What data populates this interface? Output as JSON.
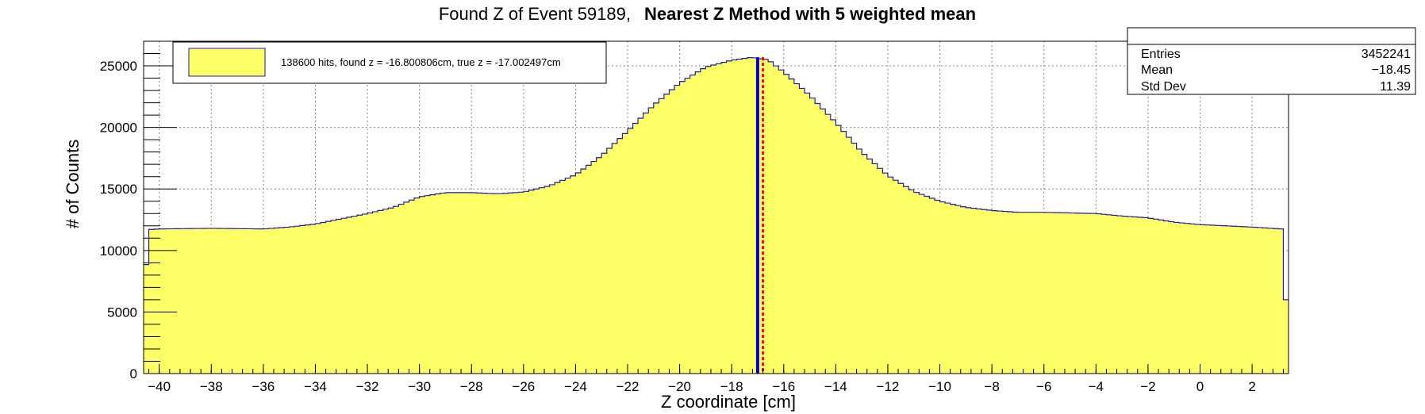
{
  "chart_data": {
    "type": "histogram",
    "title_prefix": "Found Z of Event 59189,",
    "title_bold": "Nearest Z Method with 5 weighted mean",
    "xlabel": "Z coordinate [cm]",
    "ylabel": "# of Counts",
    "xlim": [
      -40.6,
      3.4
    ],
    "ylim": [
      0,
      27000
    ],
    "x_ticks": [
      -40,
      -38,
      -36,
      -34,
      -32,
      -30,
      -28,
      -26,
      -24,
      -22,
      -20,
      -18,
      -16,
      -14,
      -12,
      -10,
      -8,
      -6,
      -4,
      -2,
      0,
      2
    ],
    "y_ticks": [
      0,
      5000,
      10000,
      15000,
      20000,
      25000
    ],
    "grid": true,
    "fill_color": "#ffff66",
    "line_color": "#1d1da8",
    "profile": [
      [
        -40.6,
        6000
      ],
      [
        -40.4,
        11700
      ],
      [
        -40,
        11750
      ],
      [
        -38,
        11800
      ],
      [
        -36,
        11750
      ],
      [
        -35,
        11900
      ],
      [
        -34,
        12150
      ],
      [
        -32,
        13000
      ],
      [
        -31,
        13500
      ],
      [
        -30,
        14350
      ],
      [
        -29,
        14700
      ],
      [
        -28,
        14700
      ],
      [
        -27,
        14600
      ],
      [
        -26,
        14750
      ],
      [
        -25,
        15250
      ],
      [
        -24,
        16150
      ],
      [
        -23,
        17700
      ],
      [
        -22,
        19700
      ],
      [
        -21,
        21800
      ],
      [
        -20,
        23600
      ],
      [
        -19,
        24900
      ],
      [
        -18,
        25450
      ],
      [
        -17.2,
        25700
      ],
      [
        -17,
        25600
      ],
      [
        -16.6,
        25500
      ],
      [
        -16,
        24500
      ],
      [
        -15,
        22600
      ],
      [
        -14,
        20400
      ],
      [
        -13,
        18000
      ],
      [
        -12,
        16100
      ],
      [
        -11,
        14800
      ],
      [
        -10,
        14000
      ],
      [
        -9,
        13500
      ],
      [
        -8,
        13250
      ],
      [
        -7,
        13100
      ],
      [
        -6,
        13100
      ],
      [
        -5,
        13050
      ],
      [
        -4,
        13000
      ],
      [
        -3,
        12800
      ],
      [
        -2,
        12650
      ],
      [
        -1,
        12300
      ],
      [
        0,
        12100
      ],
      [
        1,
        12000
      ],
      [
        2,
        11900
      ],
      [
        3.1,
        11750
      ],
      [
        3.2,
        6000
      ],
      [
        3.4,
        6000
      ]
    ],
    "vertical_lines": [
      {
        "x": -17.002497,
        "color": "#0000cc",
        "style": "solid"
      },
      {
        "x": -16.800806,
        "color": "#ff0000",
        "style": "dotted"
      }
    ],
    "legend": {
      "label": "138600 hits, found z = -16.800806cm, true z = -17.002497cm",
      "placement": "top-left"
    },
    "stats": {
      "placement": "top-right",
      "rows": [
        {
          "label": "Entries",
          "value": "3452241"
        },
        {
          "label": "Mean",
          "value": "−18.45"
        },
        {
          "label": "Std Dev",
          "value": "11.39"
        }
      ]
    }
  }
}
